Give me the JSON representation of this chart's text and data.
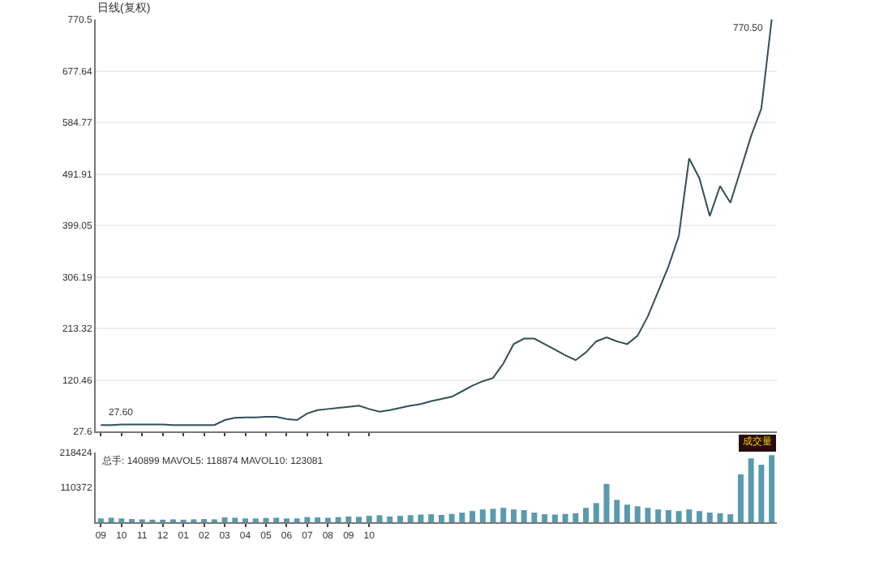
{
  "chart_data": [
    {
      "type": "line",
      "title": "日线(复权)",
      "categories": [
        "09",
        null,
        "10",
        null,
        "11",
        null,
        "12",
        null,
        "01",
        null,
        "02",
        null,
        "03",
        null,
        "04",
        null,
        "05",
        null,
        "06",
        null,
        "07",
        null,
        "08",
        null,
        "09",
        null,
        "10",
        null,
        null,
        null,
        null,
        null,
        null,
        null,
        null,
        null,
        null,
        null,
        null,
        null,
        null,
        null,
        null,
        null,
        null,
        null,
        null,
        null,
        null,
        null,
        null,
        null,
        null,
        null,
        null,
        null,
        null,
        null,
        null,
        null,
        null,
        null,
        null,
        null,
        null,
        null
      ],
      "series": [
        {
          "color": "#2f4f5a",
          "values": [
            39,
            39,
            40,
            40,
            40,
            40,
            40,
            39,
            39,
            39,
            39,
            39,
            48,
            52,
            53,
            53,
            54,
            54,
            50,
            48,
            60,
            66,
            68,
            70,
            72,
            74,
            68,
            63,
            66,
            70,
            74,
            77,
            82,
            86,
            90,
            100,
            110,
            118,
            124,
            150,
            185,
            195,
            195,
            185,
            175,
            165,
            156,
            170,
            190,
            197,
            190,
            185,
            200,
            235,
            280,
            325,
            380,
            520,
            484,
            416,
            470,
            440,
            500,
            560,
            610,
            770.5
          ]
        }
      ],
      "ylim": [
        27.6,
        770.5
      ],
      "yticks": [
        27.6,
        120.46,
        213.32,
        306.19,
        399.05,
        491.91,
        584.77,
        677.64,
        770.5
      ],
      "grid": "y",
      "tick_labels": "y",
      "line_style": "solid",
      "annotations": [
        "770.50",
        {
          "text": "27.60",
          "y": 27.6
        }
      ]
    },
    {
      "type": "bar",
      "categories": [
        "09",
        null,
        "10",
        null,
        "11",
        null,
        "12",
        null,
        "01",
        null,
        "02",
        null,
        "03",
        null,
        "04",
        null,
        "05",
        null,
        "06",
        null,
        "07",
        null,
        "08",
        null,
        "09",
        null,
        "10",
        null,
        null,
        null,
        null,
        null,
        null,
        null,
        null,
        null,
        null,
        null,
        null,
        null,
        null,
        null,
        null,
        null,
        null,
        null,
        null,
        null,
        null,
        null,
        null,
        null,
        null,
        null,
        null,
        null,
        null,
        null,
        null,
        null,
        null,
        null,
        null,
        null,
        null,
        null
      ],
      "series": [
        {
          "color": "#5a9ab0",
          "values": [
            12000,
            14000,
            12000,
            10000,
            9000,
            8000,
            8000,
            9000,
            8000,
            9000,
            10000,
            9000,
            15000,
            14000,
            12000,
            12000,
            13000,
            14000,
            12000,
            12000,
            16000,
            15000,
            14000,
            16000,
            18000,
            17000,
            20000,
            22000,
            18000,
            20000,
            22000,
            24000,
            25000,
            23000,
            26000,
            30000,
            35000,
            40000,
            42000,
            45000,
            40000,
            38000,
            30000,
            25000,
            24000,
            26000,
            28000,
            45000,
            60000,
            120000,
            70000,
            55000,
            50000,
            45000,
            40000,
            38000,
            35000,
            40000,
            35000,
            30000,
            28000,
            25000,
            150000,
            200000,
            180000,
            210000
          ]
        }
      ],
      "ylim": [
        0,
        218424
      ],
      "yticks": [
        110372,
        218424
      ],
      "grid": false,
      "legend_title": "成交量",
      "annotations": [
        "总手: 140899 MAVOL5: 118874 MAVOL10: 123081"
      ]
    }
  ]
}
